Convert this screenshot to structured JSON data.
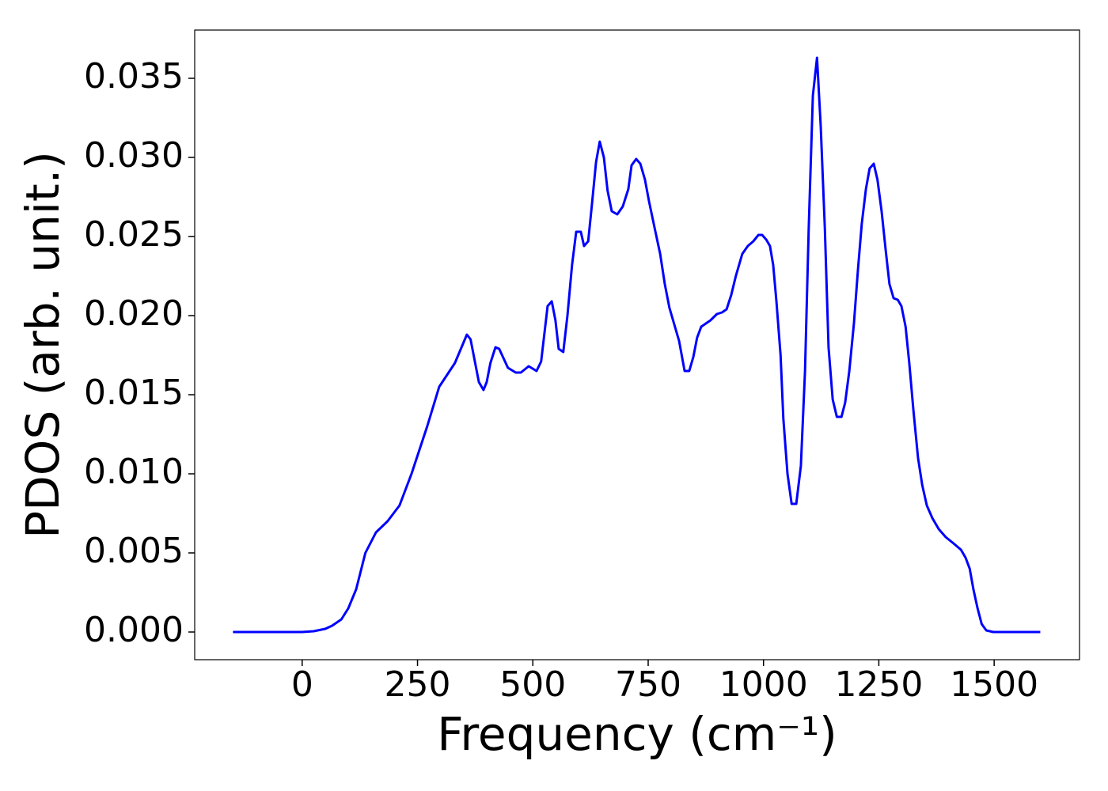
{
  "chart_data": {
    "type": "line",
    "xlabel": "Frequency (cm⁻¹)",
    "ylabel": "PDOS (arb. unit.)",
    "xlim": [
      -233,
      1685
    ],
    "ylim": [
      -0.00175,
      0.03805
    ],
    "xticks": [
      0,
      250,
      500,
      750,
      1000,
      1250,
      1500
    ],
    "yticks": [
      {
        "value": 0,
        "label": "0.000"
      },
      {
        "value": 0.005,
        "label": "0.005"
      },
      {
        "value": 0.01,
        "label": "0.010"
      },
      {
        "value": 0.015,
        "label": "0.015"
      },
      {
        "value": 0.02,
        "label": "0.020"
      },
      {
        "value": 0.025,
        "label": "0.025"
      },
      {
        "value": 0.03,
        "label": "0.030"
      },
      {
        "value": 0.035,
        "label": "0.035"
      }
    ],
    "grid": false,
    "series": [
      {
        "color": "#0000ff",
        "x": [
          -150,
          0,
          25,
          50,
          65,
          85,
          100,
          117,
          137,
          160,
          185,
          211,
          237,
          271,
          297,
          331,
          357,
          365,
          383,
          393,
          400,
          408,
          419,
          427,
          446,
          463,
          474,
          491,
          508,
          518,
          532,
          541,
          549,
          556,
          566,
          575,
          585,
          594,
          604,
          611,
          620,
          628,
          637,
          645,
          654,
          662,
          671,
          683,
          695,
          707,
          714,
          724,
          733,
          743,
          752,
          765,
          776,
          786,
          796,
          807,
          817,
          829,
          839,
          848,
          856,
          865,
          875,
          885,
          899,
          910,
          920,
          930,
          940,
          954,
          966,
          978,
          989,
          997,
          1006,
          1014,
          1021,
          1028,
          1037,
          1043,
          1052,
          1061,
          1071,
          1081,
          1090,
          1098,
          1107,
          1116,
          1124,
          1133,
          1141,
          1150,
          1159,
          1169,
          1177,
          1186,
          1196,
          1205,
          1213,
          1222,
          1230,
          1239,
          1247,
          1256,
          1265,
          1273,
          1282,
          1291,
          1299,
          1308,
          1316,
          1325,
          1335,
          1344,
          1354,
          1366,
          1380,
          1395,
          1412,
          1428,
          1438,
          1447,
          1455,
          1464,
          1473,
          1483,
          1498,
          1600
        ],
        "values": [
          0,
          0,
          5e-05,
          0.0002,
          0.0004,
          0.0008,
          0.0015,
          0.0027,
          0.005,
          0.0063,
          0.007,
          0.008,
          0.01,
          0.013,
          0.0155,
          0.017,
          0.0188,
          0.0185,
          0.0158,
          0.0153,
          0.0158,
          0.017,
          0.018,
          0.0179,
          0.0167,
          0.0164,
          0.0164,
          0.0168,
          0.0165,
          0.0171,
          0.0206,
          0.0209,
          0.0197,
          0.0179,
          0.0177,
          0.02,
          0.0232,
          0.0253,
          0.0253,
          0.0244,
          0.0247,
          0.027,
          0.0297,
          0.031,
          0.03,
          0.0279,
          0.0266,
          0.0264,
          0.0269,
          0.028,
          0.0295,
          0.0299,
          0.0296,
          0.0286,
          0.0272,
          0.0254,
          0.0239,
          0.022,
          0.0205,
          0.0194,
          0.0184,
          0.0165,
          0.0165,
          0.0174,
          0.0186,
          0.0193,
          0.0195,
          0.0197,
          0.0201,
          0.0202,
          0.0204,
          0.0213,
          0.0225,
          0.0239,
          0.0244,
          0.0247,
          0.0251,
          0.0251,
          0.0248,
          0.0244,
          0.0232,
          0.0209,
          0.0175,
          0.0135,
          0.01,
          0.0081,
          0.0081,
          0.0105,
          0.0165,
          0.0255,
          0.0339,
          0.0363,
          0.032,
          0.0255,
          0.018,
          0.0147,
          0.0136,
          0.0136,
          0.0145,
          0.0165,
          0.0195,
          0.023,
          0.0258,
          0.028,
          0.0293,
          0.0296,
          0.0286,
          0.0266,
          0.0241,
          0.022,
          0.0211,
          0.021,
          0.0206,
          0.0193,
          0.017,
          0.014,
          0.011,
          0.0093,
          0.008,
          0.0072,
          0.0065,
          0.006,
          0.0056,
          0.0052,
          0.0047,
          0.004,
          0.0027,
          0.0015,
          0.0005,
          0.0001,
          0,
          0
        ]
      }
    ]
  }
}
